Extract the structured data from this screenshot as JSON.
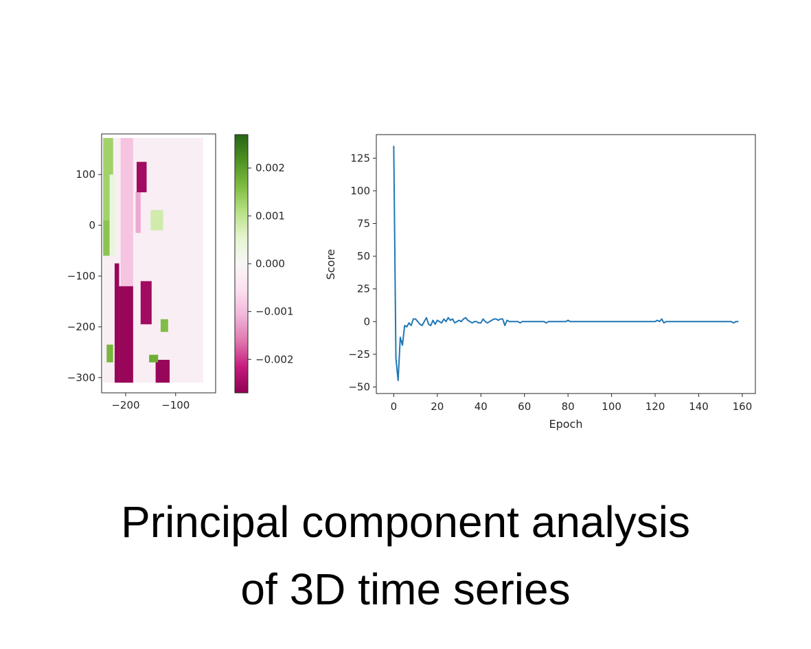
{
  "caption": {
    "line1": "Principal component analysis",
    "line2": "of 3D time series"
  },
  "chart_data": [
    {
      "type": "heatmap",
      "title": "",
      "xlabel": "",
      "ylabel": "",
      "xlim": [
        -248,
        -20
      ],
      "ylim": [
        -330,
        180
      ],
      "xticks": [
        -200,
        -100
      ],
      "yticks": [
        100,
        0,
        -100,
        -200,
        -300
      ],
      "colormap": "PiYG",
      "colormap_stops": [
        "#8e0152",
        "#c51b7d",
        "#de77ae",
        "#f1b6da",
        "#fde0ef",
        "#f7f7f7",
        "#e6f5d0",
        "#b8e186",
        "#7fbc41",
        "#4d9221",
        "#276419"
      ],
      "colorbar": {
        "range": [
          -0.0027,
          0.0027
        ],
        "ticks": [
          0.002,
          0.001,
          0.0,
          -0.001,
          -0.002
        ],
        "tick_labels": [
          "0.002",
          "0.001",
          "0.000",
          "−0.001",
          "−0.002"
        ]
      },
      "regions": [
        {
          "x": [
            -245,
            -45
          ],
          "y": [
            -310,
            172
          ],
          "value": -0.0002
        },
        {
          "x": [
            -245,
            -225
          ],
          "y": [
            10,
            172
          ],
          "value": 0.0013
        },
        {
          "x": [
            -245,
            -232
          ],
          "y": [
            -60,
            10
          ],
          "value": 0.0015
        },
        {
          "x": [
            -232,
            -222
          ],
          "y": [
            -60,
            100
          ],
          "value": 0.0004
        },
        {
          "x": [
            -210,
            -185
          ],
          "y": [
            -310,
            172
          ],
          "value": -0.0009
        },
        {
          "x": [
            -222,
            -213
          ],
          "y": [
            -310,
            -75
          ],
          "value": -0.0026
        },
        {
          "x": [
            -213,
            -185
          ],
          "y": [
            -310,
            -120
          ],
          "value": -0.0026
        },
        {
          "x": [
            -178,
            -158
          ],
          "y": [
            65,
            125
          ],
          "value": -0.0025
        },
        {
          "x": [
            -180,
            -170
          ],
          "y": [
            -15,
            65
          ],
          "value": -0.0012
        },
        {
          "x": [
            -170,
            -148
          ],
          "y": [
            -195,
            -110
          ],
          "value": -0.0025
        },
        {
          "x": [
            -140,
            -112
          ],
          "y": [
            -310,
            -265
          ],
          "value": -0.0026
        },
        {
          "x": [
            -150,
            -125
          ],
          "y": [
            -10,
            30
          ],
          "value": 0.0008
        },
        {
          "x": [
            -130,
            -115
          ],
          "y": [
            -210,
            -185
          ],
          "value": 0.0016
        },
        {
          "x": [
            -238,
            -225
          ],
          "y": [
            -270,
            -235
          ],
          "value": 0.0017
        },
        {
          "x": [
            -153,
            -135
          ],
          "y": [
            -270,
            -255
          ],
          "value": 0.0018
        }
      ]
    },
    {
      "type": "line",
      "title": "",
      "xlabel": "Epoch",
      "ylabel": "Score",
      "xlim": [
        -8,
        166
      ],
      "ylim": [
        -55,
        143
      ],
      "xticks": [
        0,
        20,
        40,
        60,
        80,
        100,
        120,
        140,
        160
      ],
      "yticks": [
        125,
        100,
        75,
        50,
        25,
        0,
        -25,
        -50
      ],
      "grid": false,
      "line_color": "#1f77b4",
      "x_start": 0,
      "y": [
        134,
        -28,
        -45,
        -12,
        -18,
        -3,
        -4,
        -1,
        -3,
        2,
        2,
        0,
        -2,
        -3,
        0,
        3,
        -2,
        -3,
        1,
        -2,
        1,
        0,
        -1,
        2,
        0,
        3,
        1,
        2,
        -1,
        0,
        1,
        0,
        2,
        3,
        1,
        0,
        -1,
        0,
        0,
        -1,
        -1,
        2,
        0,
        -1,
        0,
        1,
        2,
        2,
        1,
        2,
        2,
        -3,
        1,
        0,
        0,
        0,
        0,
        0,
        -1,
        0,
        0,
        0,
        0,
        0,
        0,
        0,
        0,
        0,
        0,
        0,
        -1,
        0,
        0,
        0,
        0,
        0,
        0,
        0,
        0,
        0,
        1,
        0,
        0,
        0,
        0,
        0,
        0,
        0,
        0,
        0,
        0,
        0,
        0,
        0,
        0,
        0,
        0,
        0,
        0,
        0,
        0,
        0,
        0,
        0,
        0,
        0,
        0,
        0,
        0,
        0,
        0,
        0,
        0,
        0,
        0,
        0,
        0,
        0,
        0,
        0,
        0,
        1,
        0,
        2,
        -1,
        0,
        0,
        0,
        0,
        0,
        0,
        0,
        0,
        0,
        0,
        0,
        0,
        0,
        0,
        0,
        0,
        0,
        0,
        0,
        0,
        0,
        0,
        0,
        0,
        0,
        0,
        0,
        0,
        0,
        0,
        0,
        -1,
        0,
        0
      ]
    }
  ]
}
